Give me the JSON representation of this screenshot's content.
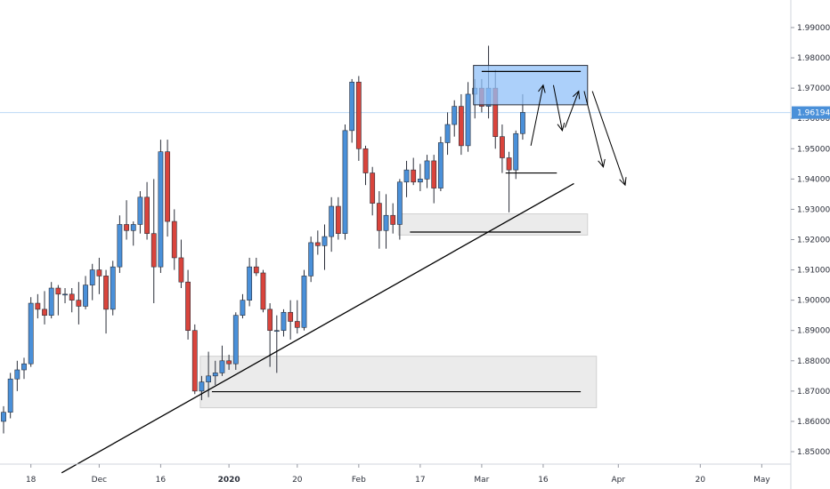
{
  "chart_data": {
    "type": "candlestick",
    "y_axis": {
      "min": 1.8435,
      "max": 2.0,
      "ticks": [
        "1.85000",
        "1.86000",
        "1.87000",
        "1.88000",
        "1.89000",
        "1.90000",
        "1.91000",
        "1.92000",
        "1.93000",
        "1.94000",
        "1.95000",
        "1.96000",
        "1.97000",
        "1.98000",
        "1.99000"
      ]
    },
    "x_axis": {
      "ticks": [
        {
          "label": "18",
          "bar": 4,
          "bold": false
        },
        {
          "label": "Dec",
          "bar": 14,
          "bold": false
        },
        {
          "label": "16",
          "bar": 23,
          "bold": false
        },
        {
          "label": "2020",
          "bar": 33,
          "bold": true
        },
        {
          "label": "20",
          "bar": 43,
          "bold": false
        },
        {
          "label": "Feb",
          "bar": 52,
          "bold": false
        },
        {
          "label": "17",
          "bar": 61,
          "bold": false
        },
        {
          "label": "Mar",
          "bar": 70,
          "bold": false
        },
        {
          "label": "16",
          "bar": 79,
          "bold": false
        },
        {
          "label": "Apr",
          "bar": 90,
          "bold": false
        },
        {
          "label": "20",
          "bar": 102,
          "bold": false
        },
        {
          "label": "May",
          "bar": 111,
          "bold": false
        }
      ]
    },
    "last_price": {
      "value": 1.96194,
      "label": "1.96194"
    },
    "colors": {
      "up": "#4a90d9",
      "down": "#d9443c",
      "wick": "#2a2e39",
      "zone": "#e8e8e8",
      "supply_zone": "#90c0f8",
      "price_line": "#bcd8f5"
    },
    "candles": [
      [
        1.86,
        1.865,
        1.856,
        1.863
      ],
      [
        1.863,
        1.876,
        1.861,
        1.874
      ],
      [
        1.874,
        1.88,
        1.87,
        1.877
      ],
      [
        1.877,
        1.881,
        1.874,
        1.879
      ],
      [
        1.879,
        1.901,
        1.878,
        1.899
      ],
      [
        1.899,
        1.902,
        1.894,
        1.897
      ],
      [
        1.897,
        1.903,
        1.892,
        1.895
      ],
      [
        1.895,
        1.906,
        1.894,
        1.904
      ],
      [
        1.904,
        1.905,
        1.895,
        1.902
      ],
      [
        1.902,
        1.904,
        1.899,
        1.902
      ],
      [
        1.902,
        1.904,
        1.896,
        1.9
      ],
      [
        1.9,
        1.906,
        1.892,
        1.898
      ],
      [
        1.898,
        1.908,
        1.897,
        1.905
      ],
      [
        1.905,
        1.912,
        1.9,
        1.91
      ],
      [
        1.91,
        1.914,
        1.902,
        1.908
      ],
      [
        1.908,
        1.91,
        1.889,
        1.897
      ],
      [
        1.897,
        1.913,
        1.895,
        1.911
      ],
      [
        1.911,
        1.928,
        1.909,
        1.925
      ],
      [
        1.925,
        1.933,
        1.92,
        1.923
      ],
      [
        1.923,
        1.926,
        1.918,
        1.925
      ],
      [
        1.925,
        1.936,
        1.922,
        1.934
      ],
      [
        1.934,
        1.939,
        1.92,
        1.922
      ],
      [
        1.922,
        1.94,
        1.899,
        1.911
      ],
      [
        1.911,
        1.953,
        1.909,
        1.949
      ],
      [
        1.949,
        1.953,
        1.921,
        1.926
      ],
      [
        1.926,
        1.93,
        1.91,
        1.914
      ],
      [
        1.914,
        1.92,
        1.904,
        1.906
      ],
      [
        1.906,
        1.91,
        1.887,
        1.89
      ],
      [
        1.89,
        1.892,
        1.869,
        1.87
      ],
      [
        1.87,
        1.875,
        1.867,
        1.873
      ],
      [
        1.873,
        1.883,
        1.868,
        1.875
      ],
      [
        1.875,
        1.88,
        1.872,
        1.876
      ],
      [
        1.876,
        1.885,
        1.875,
        1.88
      ],
      [
        1.88,
        1.882,
        1.877,
        1.879
      ],
      [
        1.879,
        1.896,
        1.877,
        1.895
      ],
      [
        1.895,
        1.902,
        1.894,
        1.9
      ],
      [
        1.9,
        1.914,
        1.898,
        1.911
      ],
      [
        1.911,
        1.914,
        1.908,
        1.909
      ],
      [
        1.909,
        1.91,
        1.896,
        1.897
      ],
      [
        1.897,
        1.899,
        1.878,
        1.89
      ],
      [
        1.89,
        1.895,
        1.876,
        1.89
      ],
      [
        1.89,
        1.897,
        1.888,
        1.896
      ],
      [
        1.896,
        1.9,
        1.887,
        1.893
      ],
      [
        1.893,
        1.9,
        1.889,
        1.891
      ],
      [
        1.891,
        1.91,
        1.89,
        1.908
      ],
      [
        1.908,
        1.921,
        1.906,
        1.919
      ],
      [
        1.919,
        1.923,
        1.915,
        1.918
      ],
      [
        1.918,
        1.925,
        1.91,
        1.921
      ],
      [
        1.921,
        1.934,
        1.916,
        1.931
      ],
      [
        1.931,
        1.934,
        1.92,
        1.922
      ],
      [
        1.922,
        1.958,
        1.92,
        1.956
      ],
      [
        1.956,
        1.973,
        1.952,
        1.972
      ],
      [
        1.972,
        1.974,
        1.946,
        1.95
      ],
      [
        1.95,
        1.951,
        1.938,
        1.942
      ],
      [
        1.942,
        1.944,
        1.928,
        1.932
      ],
      [
        1.932,
        1.936,
        1.917,
        1.923
      ],
      [
        1.923,
        1.935,
        1.917,
        1.928
      ],
      [
        1.928,
        1.932,
        1.922,
        1.925
      ],
      [
        1.925,
        1.94,
        1.92,
        1.939
      ],
      [
        1.939,
        1.946,
        1.934,
        1.943
      ],
      [
        1.943,
        1.947,
        1.938,
        1.939
      ],
      [
        1.939,
        1.945,
        1.936,
        1.94
      ],
      [
        1.94,
        1.948,
        1.937,
        1.946
      ],
      [
        1.946,
        1.948,
        1.932,
        1.937
      ],
      [
        1.937,
        1.954,
        1.936,
        1.952
      ],
      [
        1.952,
        1.962,
        1.948,
        1.958
      ],
      [
        1.958,
        1.966,
        1.954,
        1.964
      ],
      [
        1.964,
        1.968,
        1.948,
        1.951
      ],
      [
        1.951,
        1.972,
        1.949,
        1.968
      ],
      [
        1.968,
        1.973,
        1.96,
        1.97
      ],
      [
        1.97,
        1.973,
        1.962,
        1.964
      ],
      [
        1.964,
        1.984,
        1.96,
        1.97
      ],
      [
        1.97,
        1.976,
        1.95,
        1.954
      ],
      [
        1.954,
        1.958,
        1.942,
        1.947
      ],
      [
        1.947,
        1.949,
        1.929,
        1.943
      ],
      [
        1.943,
        1.956,
        1.94,
        1.955
      ],
      [
        1.955,
        1.968,
        1.953,
        1.962
      ]
    ],
    "overlays": {
      "supply_zone": {
        "x0": 68.8,
        "x1": 85.5,
        "y0": 1.9775,
        "y1": 1.9645
      },
      "demand_zone_upper": {
        "x0": 57.8,
        "x1": 85.5,
        "y0": 1.9285,
        "y1": 1.9215
      },
      "demand_zone_lower": {
        "x0": 28.8,
        "x1": 86.8,
        "y0": 1.8815,
        "y1": 1.8645
      },
      "hlines": [
        {
          "x0": 70.0,
          "x1": 84.5,
          "y": 1.9755
        },
        {
          "x0": 73.5,
          "x1": 81.0,
          "y": 1.942
        },
        {
          "x0": 59.5,
          "x1": 84.5,
          "y": 1.9225
        },
        {
          "x0": 30.5,
          "x1": 84.5,
          "y": 1.8698
        }
      ],
      "trendline": {
        "x0": 8.5,
        "y0": 1.843,
        "x1": 83.5,
        "y1": 1.9385
      },
      "arrows": [
        {
          "x0": 77.2,
          "y0": 1.951,
          "x1": 79.0,
          "y1": 1.971,
          "head": true
        },
        {
          "x0": 80.5,
          "y0": 1.971,
          "x1": 81.8,
          "y1": 1.956,
          "head": true
        },
        {
          "x0": 82.2,
          "y0": 1.957,
          "x1": 84.2,
          "y1": 1.969,
          "head": true
        },
        {
          "x0": 85.0,
          "y0": 1.969,
          "x1": 87.8,
          "y1": 1.944,
          "head": true
        },
        {
          "x0": 86.2,
          "y0": 1.969,
          "x1": 91.0,
          "y1": 1.938,
          "head": true
        }
      ]
    }
  }
}
